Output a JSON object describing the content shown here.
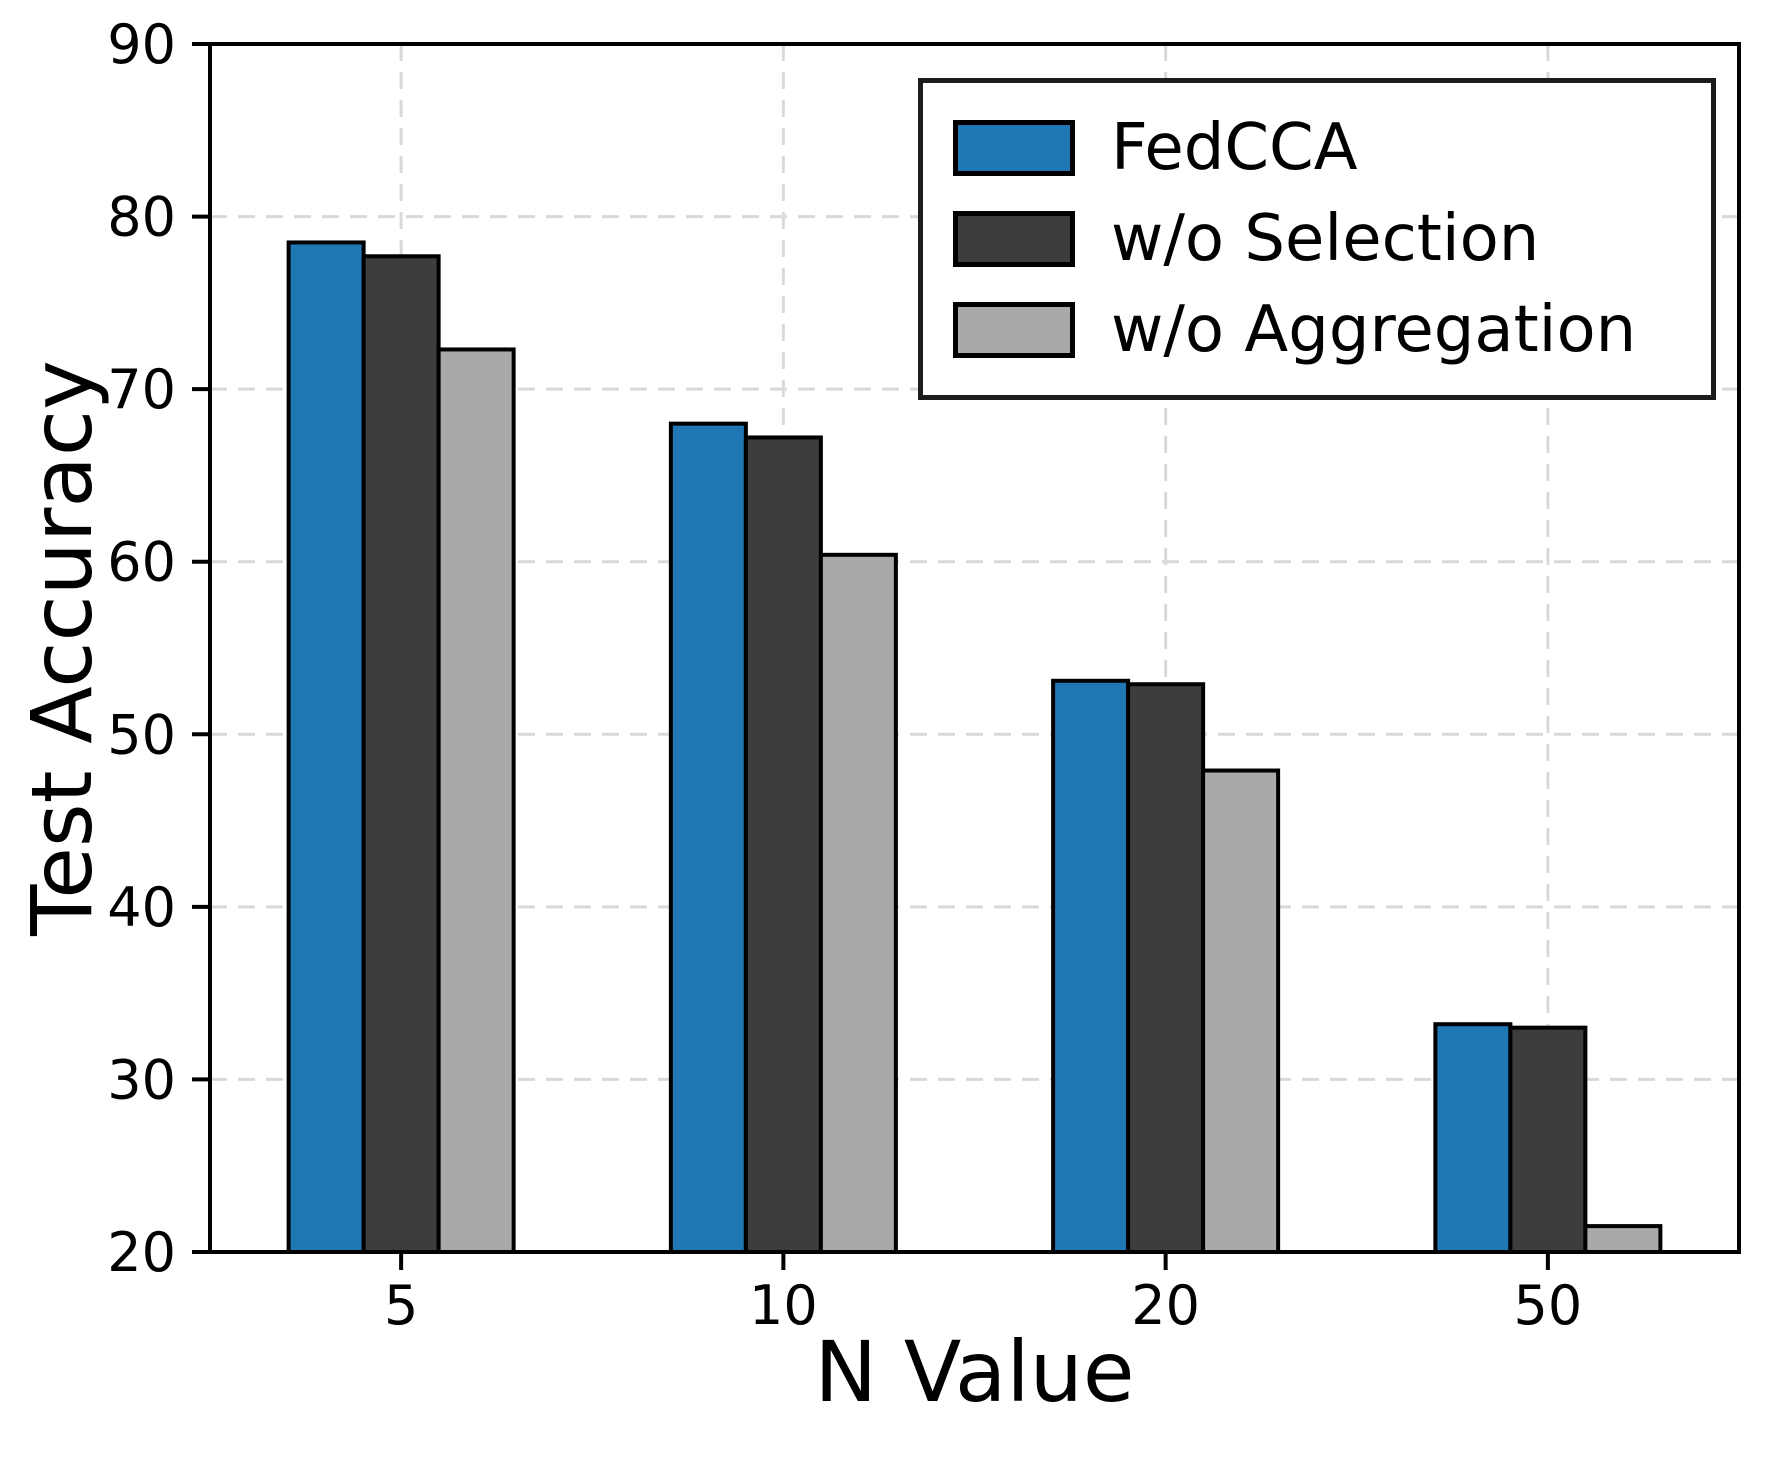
{
  "figure": {
    "background_color": "#ffffff",
    "accent_blue": "#1f77b4",
    "dark_gray": "#3d3d3d",
    "light_gray": "#a9a9a9"
  },
  "chart_data": {
    "type": "bar",
    "title": "",
    "xlabel": "N Value",
    "ylabel": "Test Accuracy",
    "categories": [
      "5",
      "10",
      "20",
      "50"
    ],
    "series": [
      {
        "name": "FedCCA",
        "color": "#1f77b4",
        "values": [
          78.5,
          68.0,
          53.1,
          33.2
        ]
      },
      {
        "name": "w/o Selection",
        "color": "#3d3d3d",
        "values": [
          77.7,
          67.2,
          52.9,
          33.0
        ]
      },
      {
        "name": "w/o Aggregation",
        "color": "#a9a9a9",
        "values": [
          72.3,
          60.4,
          47.9,
          21.5
        ]
      }
    ],
    "ylim": [
      20,
      90
    ],
    "yticks": [
      20,
      30,
      40,
      50,
      60,
      70,
      80,
      90
    ],
    "grid": "dashed, both axes, light gray",
    "grid_color": "#d9d9d9",
    "bar_edge_color": "#000000",
    "spine_color": "#000000",
    "legend_position": "upper right"
  }
}
